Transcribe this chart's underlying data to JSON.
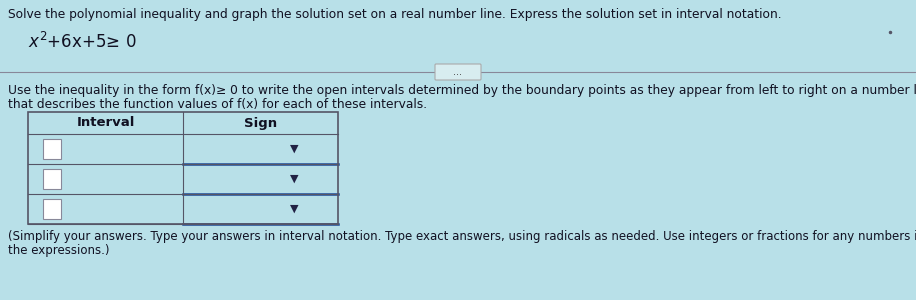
{
  "background_color": "#b8e0e8",
  "title_text": "Solve the polynomial inequality and graph the solution set on a real number line. Express the solution set in interval notation.",
  "equation_text": "x",
  "eq_sup": "2",
  "eq_rest": "+6x+5≥ 0",
  "instruction_line1": "Use the inequality in the form f(x)≥ 0 to write the open intervals determined by the boundary points as they appear from left to right on a number line. Choose the sign",
  "instruction_line2": "that describes the function values of f(x) for each of these intervals.",
  "col1_header": "Interval",
  "col2_header": "Sign",
  "footer_line1": "(Simplify your answers. Type your answers in interval notation. Type exact answers, using radicals as needed. Use integers or fractions for any numbers in",
  "footer_line2": "the expressions.)",
  "dots_text": "...",
  "title_fontsize": 8.8,
  "eq_fontsize": 12,
  "instruction_fontsize": 8.8,
  "footer_fontsize": 8.5,
  "table_fontsize": 9.5,
  "num_rows": 3,
  "bg": "#b8e0e8",
  "table_border_color": "#555566",
  "input_box_color": "#ffffff",
  "input_box_border": "#888899",
  "dropdown_bg": "#b8e0e8",
  "dropdown_arrow_color": "#222244",
  "blue_line_color": "#1a4a99",
  "text_color": "#111122",
  "divider_color": "#888899",
  "button_bg": "#d8edf0",
  "button_border": "#aaaaaa"
}
